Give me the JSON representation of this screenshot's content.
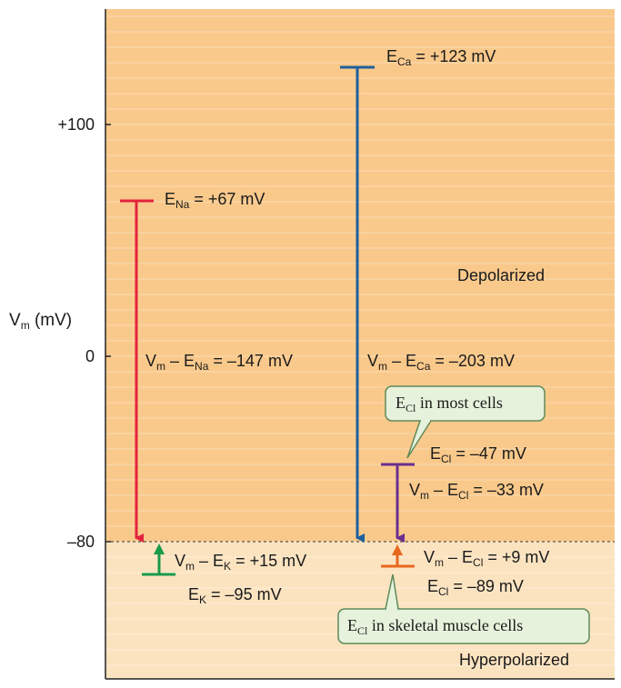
{
  "axis": {
    "title_main": "V",
    "title_sub": "m",
    "title_rest": " (mV)",
    "ticks": [
      "+100",
      "0",
      "–80"
    ]
  },
  "regions": {
    "upper": "Depolarized",
    "lower": "Hyperpolarized"
  },
  "potentials": {
    "ca": {
      "main": "E",
      "sub": "Ca",
      "rest": " = +123 mV",
      "color": "#1f5f9e"
    },
    "na": {
      "main": "E",
      "sub": "Na",
      "rest": " = +67 mV",
      "color": "#e2233b"
    },
    "k": {
      "main": "E",
      "sub": "K",
      "rest": " = –95 mV",
      "color": "#1a9a4a"
    },
    "cl_most": {
      "main": "E",
      "sub": "Cl",
      "rest": " = –47 mV",
      "color": "#6a2f8e"
    },
    "cl_muscle": {
      "main": "E",
      "sub": "Cl",
      "rest": " = –89 mV",
      "color": "#e8671e"
    }
  },
  "driving_forces": {
    "na": {
      "a": "V",
      "a_sub": "m",
      "b": " – E",
      "b_sub": "Na",
      "rest": " =  –147 mV"
    },
    "ca": {
      "a": "V",
      "a_sub": "m",
      "b": " – E",
      "b_sub": "Ca",
      "rest": " =  –203 mV"
    },
    "cl_most": {
      "a": "V",
      "a_sub": "m",
      "b": " – E",
      "b_sub": "Cl",
      "rest": " =  –33 mV"
    },
    "k": {
      "a": "V",
      "a_sub": "m",
      "b": " – E",
      "b_sub": "K",
      "rest": " =  +15 mV"
    },
    "cl_muscle": {
      "a": "V",
      "a_sub": "m",
      "b": " – E",
      "b_sub": "Cl",
      "rest": " =  +9 mV"
    }
  },
  "callouts": {
    "most": {
      "main": "E",
      "sub": "Cl",
      "rest": " in most cells"
    },
    "muscle": {
      "main": "E",
      "sub": "Cl",
      "rest": " in skeletal muscle cells"
    }
  },
  "colors": {
    "depolarized_bg": "#f9c98b",
    "hyperpolarized_bg": "#fbe3c0",
    "callout_bg": "#e6f2dc",
    "callout_border": "#5f8a5a"
  }
}
